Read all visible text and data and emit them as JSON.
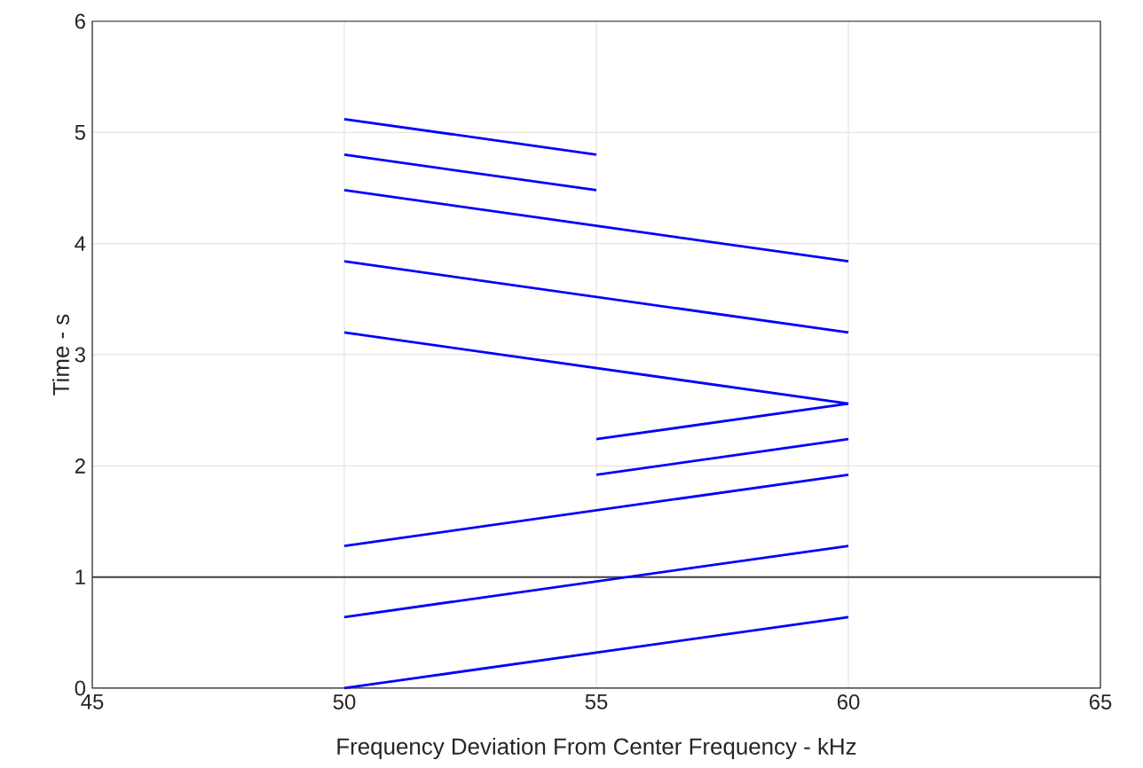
{
  "chart_data": {
    "type": "line",
    "xlabel": "Frequency Deviation From Center Frequency - kHz",
    "ylabel": "Time - s",
    "xlim": [
      45,
      65
    ],
    "xticks": [
      45,
      50,
      55,
      60,
      65
    ],
    "ylim": [
      0,
      6
    ],
    "yticks": [
      0,
      1,
      2,
      3,
      4,
      5,
      6
    ],
    "grid": true,
    "marker": "none",
    "line_style": "solid",
    "series": [
      {
        "color": "#0000ff",
        "x": [
          50,
          60
        ],
        "values": [
          0,
          0.64
        ]
      },
      {
        "color": "#0000ff",
        "x": [
          50,
          60
        ],
        "values": [
          0.64,
          1.28
        ]
      },
      {
        "color": "#0000ff",
        "x": [
          50,
          60
        ],
        "values": [
          1.28,
          1.92
        ]
      },
      {
        "color": "#0000ff",
        "x": [
          55,
          60
        ],
        "values": [
          1.92,
          2.24
        ]
      },
      {
        "color": "#0000ff",
        "x": [
          55,
          60
        ],
        "values": [
          2.24,
          2.56
        ]
      },
      {
        "color": "#0000ff",
        "x": [
          50,
          60
        ],
        "values": [
          3.2,
          2.56
        ]
      },
      {
        "color": "#0000ff",
        "x": [
          50,
          60
        ],
        "values": [
          3.84,
          3.2
        ]
      },
      {
        "color": "#0000ff",
        "x": [
          50,
          60
        ],
        "values": [
          4.48,
          3.84
        ]
      },
      {
        "color": "#0000ff",
        "x": [
          50,
          55
        ],
        "values": [
          4.8,
          4.48
        ]
      },
      {
        "color": "#0000ff",
        "x": [
          50,
          55
        ],
        "values": [
          5.12,
          4.8
        ]
      }
    ],
    "ref_lines": [
      {
        "axis": "y",
        "value": 1,
        "color": "#404040"
      }
    ]
  }
}
